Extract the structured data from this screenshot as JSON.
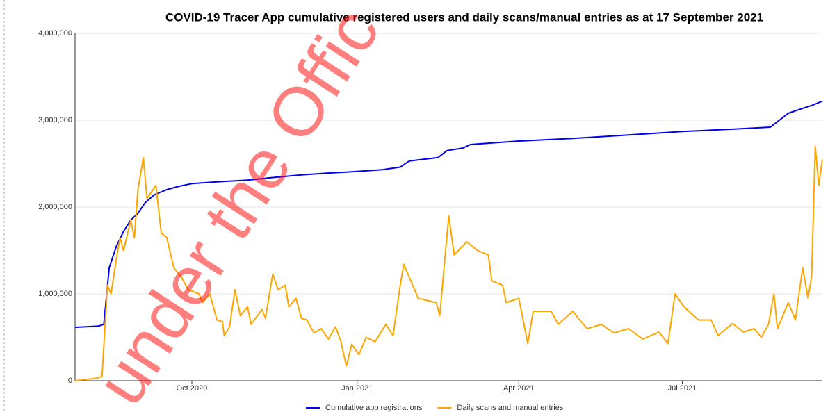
{
  "chart_data": {
    "type": "line",
    "title": "COVID-19 Tracer App cumulative registered users and daily scans/manual entries as at 17 September 2021",
    "watermark": "under the Offic",
    "xlim": [
      "2020-07-28",
      "2021-09-17"
    ],
    "xticks": [
      {
        "value": "2020-10-01",
        "label": "Oct 2020"
      },
      {
        "value": "2021-01-01",
        "label": "Jan 2021"
      },
      {
        "value": "2021-04-01",
        "label": "Apr 2021"
      },
      {
        "value": "2021-07-01",
        "label": "Jul 2021"
      }
    ],
    "ylim": [
      0,
      4000000
    ],
    "yticks": [
      0,
      {
        "value": 1000000,
        "label": "1,000,000"
      },
      {
        "value": 2000000,
        "label": "2,000,000"
      },
      {
        "value": 3000000,
        "label": "3,000,000"
      },
      {
        "value": 4000000,
        "label": "4,000,000"
      }
    ],
    "grid": true,
    "legend": "bottom",
    "series": [
      {
        "name": "Cumulative app registrations",
        "color": "#0000ee",
        "x": [
          "2020-07-28",
          "2020-08-10",
          "2020-08-13",
          "2020-08-16",
          "2020-08-20",
          "2020-08-24",
          "2020-08-28",
          "2020-09-01",
          "2020-09-05",
          "2020-09-10",
          "2020-09-17",
          "2020-09-24",
          "2020-10-01",
          "2020-10-15",
          "2020-11-01",
          "2020-11-15",
          "2020-12-01",
          "2020-12-15",
          "2021-01-01",
          "2021-01-15",
          "2021-01-25",
          "2021-01-30",
          "2021-02-15",
          "2021-02-20",
          "2021-03-01",
          "2021-03-05",
          "2021-04-01",
          "2021-05-01",
          "2021-06-01",
          "2021-07-01",
          "2021-08-01",
          "2021-08-19",
          "2021-08-24",
          "2021-08-29",
          "2021-09-05",
          "2021-09-11",
          "2021-09-17"
        ],
        "values": [
          615000,
          630000,
          650000,
          1300000,
          1550000,
          1720000,
          1850000,
          1930000,
          2050000,
          2140000,
          2200000,
          2240000,
          2270000,
          2290000,
          2310000,
          2340000,
          2370000,
          2390000,
          2410000,
          2430000,
          2460000,
          2530000,
          2570000,
          2650000,
          2680000,
          2720000,
          2760000,
          2790000,
          2830000,
          2870000,
          2900000,
          2920000,
          3000000,
          3080000,
          3130000,
          3170000,
          3220000
        ]
      },
      {
        "name": "Daily scans and manual entries",
        "color": "#ffa500",
        "x": [
          "2020-07-28",
          "2020-08-09",
          "2020-08-12",
          "2020-08-15",
          "2020-08-17",
          "2020-08-20",
          "2020-08-22",
          "2020-08-24",
          "2020-08-28",
          "2020-08-30",
          "2020-09-01",
          "2020-09-04",
          "2020-09-06",
          "2020-09-11",
          "2020-09-14",
          "2020-09-17",
          "2020-09-21",
          "2020-09-25",
          "2020-09-29",
          "2020-10-05",
          "2020-10-07",
          "2020-10-11",
          "2020-10-15",
          "2020-10-18",
          "2020-10-19",
          "2020-10-22",
          "2020-10-25",
          "2020-10-28",
          "2020-11-01",
          "2020-11-03",
          "2020-11-09",
          "2020-11-11",
          "2020-11-15",
          "2020-11-18",
          "2020-11-22",
          "2020-11-24",
          "2020-11-28",
          "2020-12-01",
          "2020-12-04",
          "2020-12-08",
          "2020-12-12",
          "2020-12-16",
          "2020-12-20",
          "2020-12-23",
          "2020-12-26",
          "2020-12-29",
          "2021-01-02",
          "2021-01-06",
          "2021-01-11",
          "2021-01-17",
          "2021-01-21",
          "2021-01-25",
          "2021-01-27",
          "2021-02-04",
          "2021-02-14",
          "2021-02-16",
          "2021-02-21",
          "2021-02-24",
          "2021-03-03",
          "2021-03-09",
          "2021-03-15",
          "2021-03-17",
          "2021-03-23",
          "2021-03-25",
          "2021-04-01",
          "2021-04-06",
          "2021-04-09",
          "2021-04-19",
          "2021-04-23",
          "2021-05-01",
          "2021-05-09",
          "2021-05-17",
          "2021-05-24",
          "2021-06-01",
          "2021-06-09",
          "2021-06-18",
          "2021-06-23",
          "2021-06-27",
          "2021-07-02",
          "2021-07-10",
          "2021-07-17",
          "2021-07-21",
          "2021-07-29",
          "2021-08-04",
          "2021-08-10",
          "2021-08-14",
          "2021-08-18",
          "2021-08-21",
          "2021-08-23",
          "2021-08-29",
          "2021-09-02",
          "2021-09-06",
          "2021-09-09",
          "2021-09-11",
          "2021-09-13",
          "2021-09-15",
          "2021-09-17"
        ],
        "values": [
          0,
          30000,
          50000,
          1100000,
          1000000,
          1400000,
          1650000,
          1500000,
          1850000,
          1650000,
          2200000,
          2570000,
          2100000,
          2250000,
          1700000,
          1650000,
          1300000,
          1200000,
          1050000,
          1000000,
          900000,
          1000000,
          700000,
          680000,
          520000,
          620000,
          1050000,
          750000,
          850000,
          650000,
          820000,
          720000,
          1230000,
          1050000,
          1100000,
          850000,
          950000,
          720000,
          700000,
          550000,
          600000,
          480000,
          620000,
          450000,
          170000,
          420000,
          300000,
          500000,
          450000,
          650000,
          520000,
          1100000,
          1340000,
          950000,
          900000,
          750000,
          1900000,
          1450000,
          1600000,
          1500000,
          1450000,
          1150000,
          1100000,
          900000,
          950000,
          430000,
          800000,
          800000,
          650000,
          800000,
          600000,
          650000,
          550000,
          600000,
          480000,
          560000,
          430000,
          1000000,
          850000,
          700000,
          700000,
          520000,
          660000,
          560000,
          600000,
          500000,
          650000,
          1000000,
          600000,
          900000,
          700000,
          1300000,
          950000,
          1200000,
          2700000,
          2250000,
          2550000
        ]
      }
    ]
  }
}
